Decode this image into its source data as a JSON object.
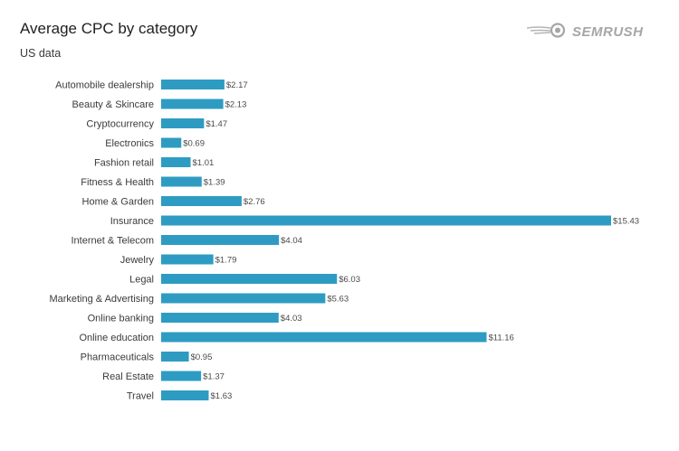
{
  "header": {
    "title": "Average CPC by category",
    "subtitle": "US data",
    "brand": "SEMRUSH"
  },
  "colors": {
    "bar": "#2e9cc2",
    "text": "#3a3a3a",
    "brand": "#a6a6a6"
  },
  "icons": {
    "brand_logo": "semrush-fireball-logo-icon"
  },
  "chart_data": {
    "type": "bar",
    "orientation": "horizontal",
    "title": "Average CPC by category",
    "subtitle": "US data",
    "value_prefix": "$",
    "categories": [
      "Automobile dealership",
      "Beauty & Skincare",
      "Cryptocurrency",
      "Electronics",
      "Fashion retail",
      "Fitness & Health",
      "Home & Garden",
      "Insurance",
      "Internet & Telecom",
      "Jewelry",
      "Legal",
      "Marketing & Advertising",
      "Online banking",
      "Online education",
      "Pharmaceuticals",
      "Real Estate",
      "Travel"
    ],
    "values": [
      2.17,
      2.13,
      1.47,
      0.69,
      1.01,
      1.39,
      2.76,
      15.43,
      4.04,
      1.79,
      6.03,
      5.63,
      4.03,
      11.16,
      0.95,
      1.37,
      1.63
    ],
    "value_labels": [
      "$2.17",
      "$2.13",
      "$1.47",
      "$0.69",
      "$1.01",
      "$1.39",
      "$2.76",
      "$15.43",
      "$4.04",
      "$1.79",
      "$6.03",
      "$5.63",
      "$4.03",
      "$11.16",
      "$0.95",
      "$1.37",
      "$1.63"
    ],
    "xlim": [
      0,
      15.43
    ],
    "grid": false,
    "legend": "none"
  }
}
